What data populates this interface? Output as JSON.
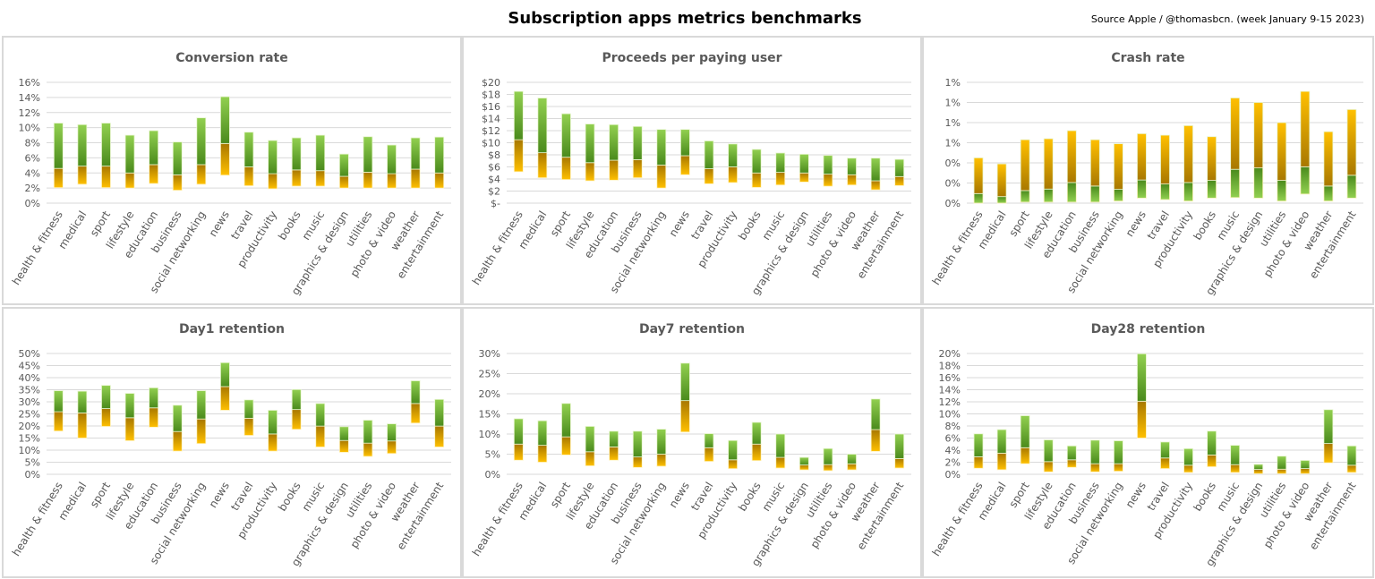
{
  "title": "Subscription apps metrics benchmarks",
  "source": "Source Apple / @thomasbcn. (week January 9-15 2023)",
  "colors": {
    "yellow": "#ffc000",
    "amber_dark": "#a87800",
    "green_dark": "#4a8a1c",
    "green_light": "#92d050",
    "grid": "#d9d9d9",
    "border": "#d9d9d9"
  },
  "chart_data": [
    {
      "type": "bar",
      "subtype": "floating-range",
      "title": "Conversion rate",
      "ylim": [
        0,
        16
      ],
      "tick_values": [
        0,
        2,
        4,
        6,
        8,
        10,
        12,
        14,
        16
      ],
      "tick_labels": [
        "0%",
        "2%",
        "4%",
        "6%",
        "8%",
        "10%",
        "12%",
        "14%",
        "16%"
      ],
      "categories": [
        "health & fitness",
        "medical",
        "sport",
        "lifestyle",
        "education",
        "business",
        "social networking",
        "news",
        "travel",
        "productivity",
        "books",
        "music",
        "graphics & design",
        "utilities",
        "photo & video",
        "weather",
        "entertainment"
      ],
      "values": {
        "low": [
          2.05,
          2.5,
          2.05,
          2.0,
          2.6,
          1.7,
          2.5,
          3.7,
          2.3,
          1.9,
          2.25,
          2.25,
          2.0,
          2.0,
          2.0,
          2.0,
          2.0
        ],
        "median": [
          4.6,
          4.9,
          4.9,
          4.0,
          5.1,
          3.75,
          5.1,
          7.9,
          4.8,
          3.9,
          4.4,
          4.3,
          3.55,
          4.1,
          3.9,
          4.5,
          4.0
        ],
        "high": [
          10.6,
          10.4,
          10.6,
          9.0,
          9.6,
          8.1,
          11.3,
          14.1,
          9.4,
          8.3,
          8.65,
          9.0,
          6.5,
          8.8,
          7.7,
          8.65,
          8.75
        ]
      },
      "grid": true
    },
    {
      "type": "bar",
      "subtype": "floating-range",
      "title": "Proceeds per paying user",
      "ylim": [
        0,
        20
      ],
      "tick_values": [
        0,
        2,
        4,
        6,
        8,
        10,
        12,
        14,
        16,
        18,
        20
      ],
      "tick_labels": [
        "$-",
        "$2",
        "$4",
        "$6",
        "$8",
        "$10",
        "$12",
        "$14",
        "$16",
        "$18",
        "$20"
      ],
      "categories": [
        "health & fitness",
        "medical",
        "sport",
        "lifestyle",
        "education",
        "business",
        "social networking",
        "news",
        "travel",
        "productivity",
        "books",
        "music",
        "graphics & design",
        "utilities",
        "photo & video",
        "weather",
        "entertainment"
      ],
      "values": {
        "low": [
          5.2,
          4.2,
          3.9,
          3.7,
          3.8,
          4.2,
          2.5,
          4.7,
          3.2,
          3.4,
          2.6,
          3.0,
          3.5,
          2.8,
          3.0,
          2.2,
          2.9
        ],
        "median": [
          10.5,
          8.35,
          7.6,
          6.7,
          7.1,
          7.2,
          6.3,
          7.85,
          5.7,
          6.0,
          5.0,
          5.1,
          5.0,
          4.8,
          4.7,
          3.7,
          4.4
        ],
        "high": [
          18.5,
          17.4,
          14.8,
          13.1,
          13.0,
          12.7,
          12.2,
          12.2,
          10.3,
          9.8,
          8.9,
          8.3,
          8.1,
          7.9,
          7.45,
          7.45,
          7.25
        ]
      },
      "grid": true
    },
    {
      "type": "bar",
      "subtype": "floating-range",
      "title": "Crash rate",
      "ylim": [
        0,
        1.2
      ],
      "inverted_colors": true,
      "tick_values": [
        0,
        0.2,
        0.4,
        0.6,
        0.8,
        1.0,
        1.2
      ],
      "tick_labels": [
        "0%",
        "0%",
        "0%",
        "1%",
        "1%",
        "1%",
        "1%"
      ],
      "categories": [
        "health & fitness",
        "medical",
        "sport",
        "lifestyle",
        "education",
        "business",
        "social networking",
        "news",
        "travel",
        "productivity",
        "books",
        "music",
        "graphics & design",
        "utilities",
        "photo & video",
        "weather",
        "entertainment"
      ],
      "values": {
        "low": [
          0,
          0,
          0.01,
          0.01,
          0.01,
          0.01,
          0.02,
          0.05,
          0.035,
          0.02,
          0.05,
          0.055,
          0.05,
          0.02,
          0.09,
          0.02,
          0.05
        ],
        "median": [
          0.095,
          0.065,
          0.125,
          0.14,
          0.205,
          0.17,
          0.137,
          0.23,
          0.19,
          0.205,
          0.226,
          0.336,
          0.35,
          0.226,
          0.36,
          0.17,
          0.277
        ],
        "high": [
          0.45,
          0.39,
          0.63,
          0.64,
          0.72,
          0.63,
          0.59,
          0.69,
          0.675,
          0.77,
          0.66,
          1.045,
          1.0,
          0.8,
          1.11,
          0.71,
          0.93
        ]
      },
      "grid": true
    },
    {
      "type": "bar",
      "subtype": "floating-range",
      "title": "Day1 retention",
      "ylim": [
        0,
        50
      ],
      "tick_values": [
        0,
        5,
        10,
        15,
        20,
        25,
        30,
        35,
        40,
        45,
        50
      ],
      "tick_labels": [
        "0%",
        "5%",
        "10%",
        "15%",
        "20%",
        "25%",
        "30%",
        "35%",
        "40%",
        "45%",
        "50%"
      ],
      "categories": [
        "health & fitness",
        "medical",
        "sport",
        "lifestyle",
        "education",
        "business",
        "social networking",
        "news",
        "travel",
        "productivity",
        "books",
        "music",
        "graphics & design",
        "utilities",
        "photo & video",
        "weather",
        "entertainment"
      ],
      "values": {
        "low": [
          17.9,
          15.0,
          19.8,
          13.9,
          19.5,
          9.6,
          12.7,
          26.5,
          16.1,
          9.6,
          18.6,
          11.3,
          9.1,
          7.4,
          8.6,
          21.2,
          11.3
        ],
        "median": [
          25.9,
          25.4,
          27.2,
          23.4,
          27.5,
          17.7,
          22.9,
          36.3,
          23.2,
          16.7,
          26.8,
          19.95,
          14.0,
          12.9,
          13.8,
          29.3,
          19.95
        ],
        "high": [
          34.6,
          34.4,
          36.8,
          33.5,
          35.8,
          28.6,
          34.6,
          46.2,
          30.8,
          26.5,
          35.1,
          29.3,
          19.7,
          22.4,
          20.9,
          38.7,
          31.0
        ]
      },
      "grid": true
    },
    {
      "type": "bar",
      "subtype": "floating-range",
      "title": "Day7 retention",
      "ylim": [
        0,
        30
      ],
      "tick_values": [
        0,
        5,
        10,
        15,
        20,
        25,
        30
      ],
      "tick_labels": [
        "0%",
        "5%",
        "10%",
        "15%",
        "20%",
        "25%",
        "30%"
      ],
      "categories": [
        "health & fitness",
        "medical",
        "sport",
        "lifestyle",
        "education",
        "business",
        "social networking",
        "news",
        "travel",
        "productivity",
        "books",
        "music",
        "graphics & design",
        "utilities",
        "photo & video",
        "weather",
        "entertainment"
      ],
      "values": {
        "low": [
          3.5,
          3.0,
          4.8,
          2.1,
          3.5,
          1.7,
          2.0,
          10.5,
          3.2,
          1.4,
          3.4,
          1.55,
          1.1,
          0.9,
          1.1,
          5.7,
          1.55
        ],
        "median": [
          7.5,
          7.2,
          9.3,
          5.6,
          6.8,
          4.3,
          5.0,
          18.3,
          6.6,
          3.6,
          7.5,
          4.2,
          2.3,
          2.4,
          2.6,
          11.1,
          3.9
        ],
        "high": [
          13.8,
          13.3,
          17.6,
          11.9,
          10.7,
          10.7,
          11.2,
          27.6,
          10.1,
          8.4,
          12.9,
          10.0,
          4.2,
          6.4,
          5.0,
          18.7,
          10.0
        ]
      },
      "grid": true
    },
    {
      "type": "bar",
      "subtype": "floating-range",
      "title": "Day28 retention",
      "ylim": [
        0,
        20
      ],
      "tick_values": [
        0,
        2,
        4,
        6,
        8,
        10,
        12,
        14,
        16,
        18,
        20
      ],
      "tick_labels": [
        "0%",
        "2%",
        "4%",
        "6%",
        "8%",
        "10%",
        "12%",
        "14%",
        "16%",
        "18%",
        "20%"
      ],
      "categories": [
        "health & fitness",
        "medical",
        "sport",
        "lifestyle",
        "education",
        "business",
        "social networking",
        "news",
        "travel",
        "productivity",
        "books",
        "music",
        "graphics & design",
        "utilities",
        "photo & video",
        "weather",
        "entertainment"
      ],
      "values": {
        "low": [
          1.0,
          0.75,
          1.75,
          0.4,
          1.15,
          0.4,
          0.5,
          6.0,
          0.95,
          0.3,
          1.25,
          0.3,
          0.1,
          0.1,
          0.1,
          1.9,
          0.3
        ],
        "median": [
          2.9,
          3.5,
          4.4,
          2.1,
          2.4,
          1.75,
          1.75,
          12.1,
          2.7,
          1.5,
          3.2,
          1.6,
          0.8,
          0.85,
          0.95,
          5.1,
          1.5
        ],
        "high": [
          6.7,
          7.4,
          9.7,
          5.7,
          4.7,
          5.65,
          5.55,
          19.95,
          5.35,
          4.25,
          7.15,
          4.8,
          1.65,
          3.0,
          2.3,
          10.7,
          4.7
        ]
      },
      "grid": true
    }
  ]
}
